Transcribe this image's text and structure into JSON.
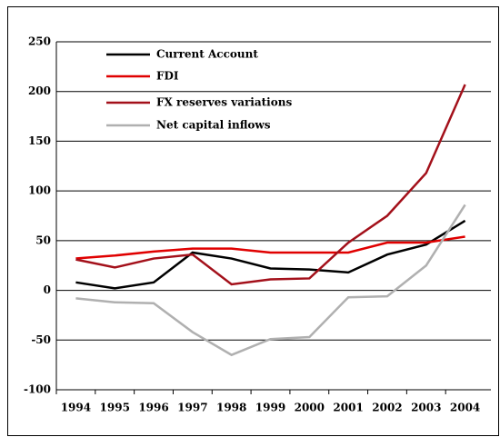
{
  "chart_data": {
    "type": "line",
    "x": [
      "1994",
      "1995",
      "1996",
      "1997",
      "1998",
      "1999",
      "2000",
      "2001",
      "2002",
      "2003",
      "2004"
    ],
    "series": [
      {
        "name": "Current Account",
        "color": "#000000",
        "values": [
          8,
          2,
          8,
          38,
          32,
          22,
          21,
          18,
          36,
          46,
          70
        ]
      },
      {
        "name": "FDI",
        "color": "#e00000",
        "values": [
          32,
          35,
          39,
          42,
          42,
          38,
          38,
          38,
          48,
          48,
          54
        ]
      },
      {
        "name": "FX reserves variations",
        "color": "#a3101a",
        "values": [
          31,
          23,
          32,
          36,
          6,
          11,
          12,
          48,
          75,
          118,
          207
        ]
      },
      {
        "name": "Net capital inflows",
        "color": "#b0b0b0",
        "values": [
          -8,
          -12,
          -13,
          -42,
          -65,
          -49,
          -47,
          -7,
          -6,
          25,
          86
        ]
      }
    ],
    "ylim": [
      -100,
      250
    ],
    "yticks": [
      -100,
      -50,
      0,
      50,
      100,
      150,
      200,
      250
    ],
    "grid": true,
    "legend": "upper left"
  }
}
